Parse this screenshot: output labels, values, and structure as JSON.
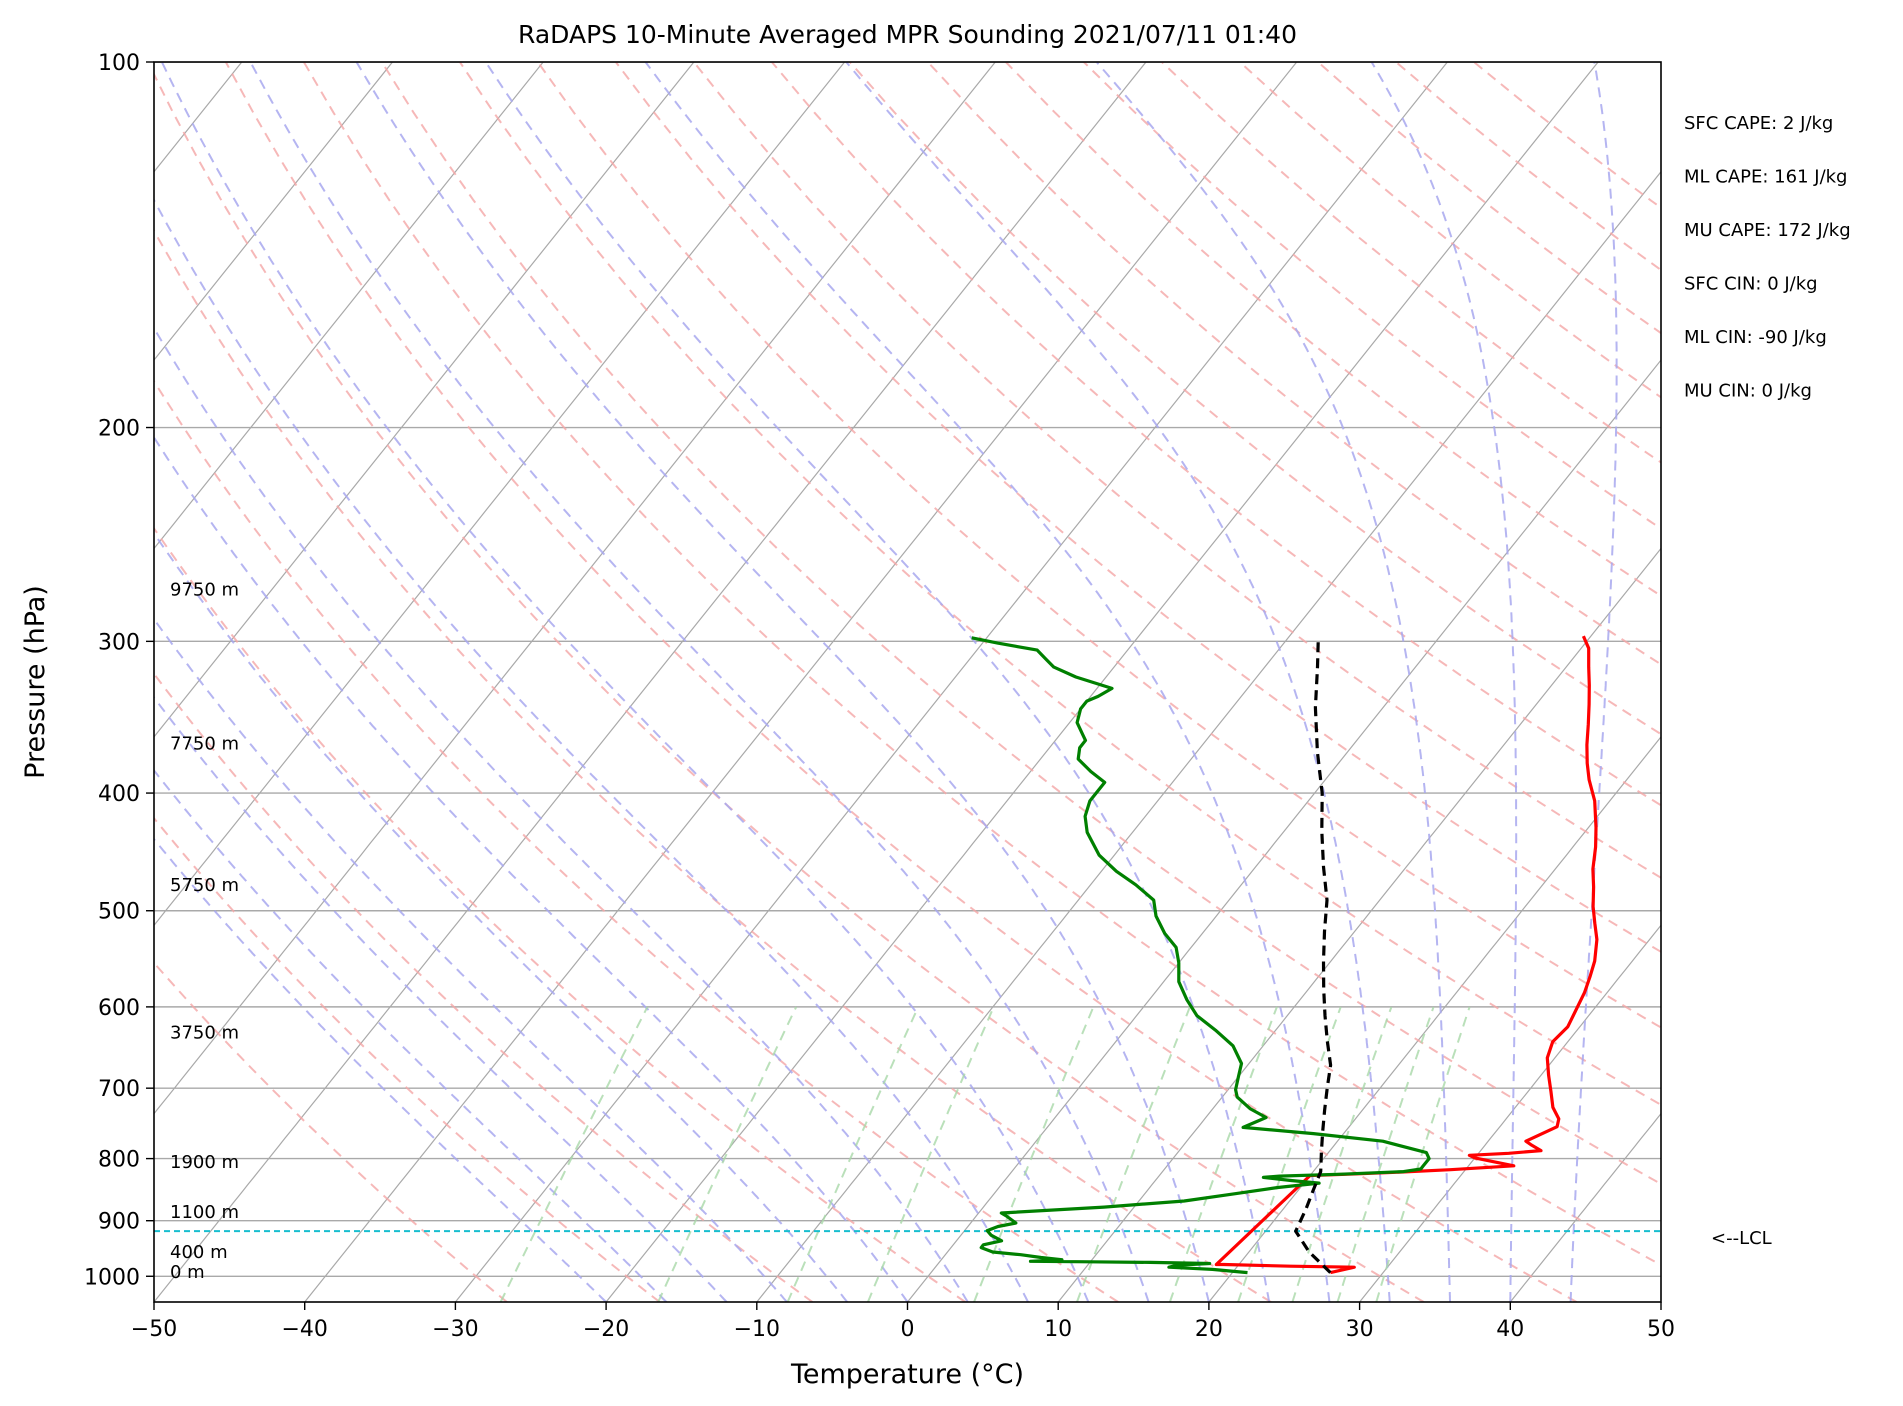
{
  "chart_data": {
    "type": "line",
    "title": "RaDAPS 10-Minute Averaged MPR Sounding 2021/07/11 01:40",
    "xlabel": "Temperature (°C)",
    "ylabel": "Pressure (hPa)",
    "xlim": [
      -50,
      50
    ],
    "ylim": [
      1050,
      100
    ],
    "yscale": "log",
    "x_ticks": [
      -50,
      -40,
      -30,
      -20,
      -10,
      0,
      10,
      20,
      30,
      40,
      50
    ],
    "x_tick_labels": [
      "−50",
      "−40",
      "−30",
      "−20",
      "−10",
      "0",
      "10",
      "20",
      "30",
      "40",
      "50"
    ],
    "y_ticks": [
      100,
      200,
      300,
      400,
      500,
      600,
      700,
      800,
      900,
      1000
    ],
    "y_tick_labels": [
      "100",
      "200",
      "300",
      "400",
      "500",
      "600",
      "700",
      "800",
      "900",
      "1000"
    ],
    "grid": true,
    "height_labels": [
      {
        "text": "9750 m",
        "p": 272
      },
      {
        "text": "7750 m",
        "p": 364
      },
      {
        "text": "5750 m",
        "p": 476
      },
      {
        "text": "3750 m",
        "p": 630
      },
      {
        "text": "1900 m",
        "p": 805
      },
      {
        "text": "1100 m",
        "p": 885
      },
      {
        "text": "400 m",
        "p": 955
      },
      {
        "text": "0 m",
        "p": 992
      }
    ],
    "lcl": {
      "p": 918,
      "label": "<--LCL"
    },
    "indices": [
      "SFC CAPE: 2 J/kg",
      "ML CAPE: 161 J/kg",
      "MU CAPE: 172 J/kg",
      "SFC CIN: 0 J/kg",
      "ML CIN: -90 J/kg",
      "MU CIN: 0 J/kg"
    ],
    "series": [
      {
        "color": "#ff0000",
        "points": [
          [
            26.5,
            993
          ],
          [
            27.8,
            983
          ],
          [
            23.5,
            981
          ],
          [
            19.0,
            978
          ],
          [
            18.5,
            978
          ],
          [
            20.0,
            826
          ],
          [
            22.5,
            824
          ],
          [
            25.5,
            821
          ],
          [
            29.0,
            817
          ],
          [
            33.0,
            811
          ],
          [
            30.0,
            799
          ],
          [
            29.5,
            795
          ],
          [
            32.0,
            792
          ],
          [
            34.0,
            788
          ],
          [
            33.0,
            779
          ],
          [
            32.5,
            774
          ],
          [
            33.8,
            753
          ],
          [
            33.5,
            742
          ],
          [
            32.5,
            726
          ],
          [
            31.5,
            704
          ],
          [
            30.5,
            683
          ],
          [
            29.5,
            661
          ],
          [
            29.0,
            641
          ],
          [
            29.2,
            623
          ],
          [
            28.5,
            584
          ],
          [
            28.0,
            566
          ],
          [
            27.5,
            550
          ],
          [
            26.5,
            528
          ],
          [
            25.5,
            512
          ],
          [
            24.5,
            496
          ],
          [
            23.5,
            478
          ],
          [
            22.5,
            462
          ],
          [
            21.5,
            443
          ],
          [
            20.5,
            427
          ],
          [
            19.0,
            406
          ],
          [
            17.5,
            390
          ],
          [
            16.5,
            378
          ],
          [
            15.5,
            365
          ],
          [
            14.5,
            351
          ],
          [
            13.5,
            338
          ],
          [
            12.5,
            326
          ],
          [
            11.5,
            315
          ],
          [
            10.5,
            304
          ],
          [
            9.5,
            297
          ]
        ]
      },
      {
        "color": "#008000",
        "points": [
          [
            21.0,
            993
          ],
          [
            18.5,
            987
          ],
          [
            17.0,
            985
          ],
          [
            15.5,
            983
          ],
          [
            16.0,
            979
          ],
          [
            18.0,
            976
          ],
          [
            14.0,
            974
          ],
          [
            10.0,
            973
          ],
          [
            6.0,
            972
          ],
          [
            8.0,
            969
          ],
          [
            6.5,
            965
          ],
          [
            5.0,
            960
          ],
          [
            3.0,
            955
          ],
          [
            2.0,
            947
          ],
          [
            2.0,
            942
          ],
          [
            3.0,
            935
          ],
          [
            2.0,
            925
          ],
          [
            1.5,
            917
          ],
          [
            2.0,
            910
          ],
          [
            3.0,
            904
          ],
          [
            2.5,
            898
          ],
          [
            2.0,
            892
          ],
          [
            1.5,
            887
          ],
          [
            8.0,
            877
          ],
          [
            10.0,
            873
          ],
          [
            13.0,
            867
          ],
          [
            16.0,
            855
          ],
          [
            18.5,
            845
          ],
          [
            21.0,
            838
          ],
          [
            19.0,
            834
          ],
          [
            17.0,
            829
          ],
          [
            18.0,
            827
          ],
          [
            22.0,
            824
          ],
          [
            26.0,
            820
          ],
          [
            27.0,
            816
          ],
          [
            27.0,
            812
          ],
          [
            27.0,
            800
          ],
          [
            26.5,
            791
          ],
          [
            23.0,
            774
          ],
          [
            18.0,
            763
          ],
          [
            13.0,
            754
          ],
          [
            14.0,
            740
          ],
          [
            12.5,
            728
          ],
          [
            11.0,
            712
          ],
          [
            10.5,
            702
          ],
          [
            10.0,
            685
          ],
          [
            9.5,
            668
          ],
          [
            8.0,
            646
          ],
          [
            6.0,
            627
          ],
          [
            4.0,
            610
          ],
          [
            2.5,
            592
          ],
          [
            1.0,
            572
          ],
          [
            0.0,
            552
          ],
          [
            -1.0,
            536
          ],
          [
            -2.5,
            522
          ],
          [
            -4.0,
            505
          ],
          [
            -5.0,
            490
          ],
          [
            -7.0,
            476
          ],
          [
            -9.0,
            464
          ],
          [
            -11.0,
            450
          ],
          [
            -13.0,
            431
          ],
          [
            -14.0,
            418
          ],
          [
            -14.5,
            406
          ],
          [
            -14.5,
            392
          ],
          [
            -16.0,
            384
          ],
          [
            -17.5,
            375
          ],
          [
            -18.0,
            367
          ],
          [
            -18.0,
            362
          ],
          [
            -18.5,
            358
          ],
          [
            -19.5,
            350
          ],
          [
            -20.0,
            341
          ],
          [
            -20.0,
            336
          ],
          [
            -19.5,
            333
          ],
          [
            -19.0,
            328
          ],
          [
            -22.0,
            321
          ],
          [
            -24.0,
            315
          ],
          [
            -25.0,
            310
          ],
          [
            -26.0,
            305
          ],
          [
            -29.0,
            301
          ],
          [
            -31.0,
            298
          ]
        ]
      },
      {
        "color": "#000000",
        "dashed": true,
        "points": [
          [
            26.5,
            993
          ],
          [
            24.0,
            955
          ],
          [
            22.0,
            918
          ],
          [
            21.5,
            880
          ],
          [
            21.0,
            850
          ],
          [
            20.5,
            820
          ],
          [
            19.5,
            790
          ],
          [
            18.5,
            760
          ],
          [
            17.5,
            730
          ],
          [
            16.5,
            700
          ],
          [
            15.5,
            670
          ],
          [
            14.0,
            640
          ],
          [
            12.5,
            610
          ],
          [
            11.0,
            580
          ],
          [
            9.5,
            550
          ],
          [
            8.0,
            520
          ],
          [
            6.5,
            490
          ],
          [
            4.5,
            460
          ],
          [
            2.5,
            430
          ],
          [
            0.5,
            400
          ],
          [
            -2.0,
            370
          ],
          [
            -4.5,
            340
          ],
          [
            -6.5,
            315
          ],
          [
            -8.0,
            298
          ]
        ]
      }
    ]
  }
}
